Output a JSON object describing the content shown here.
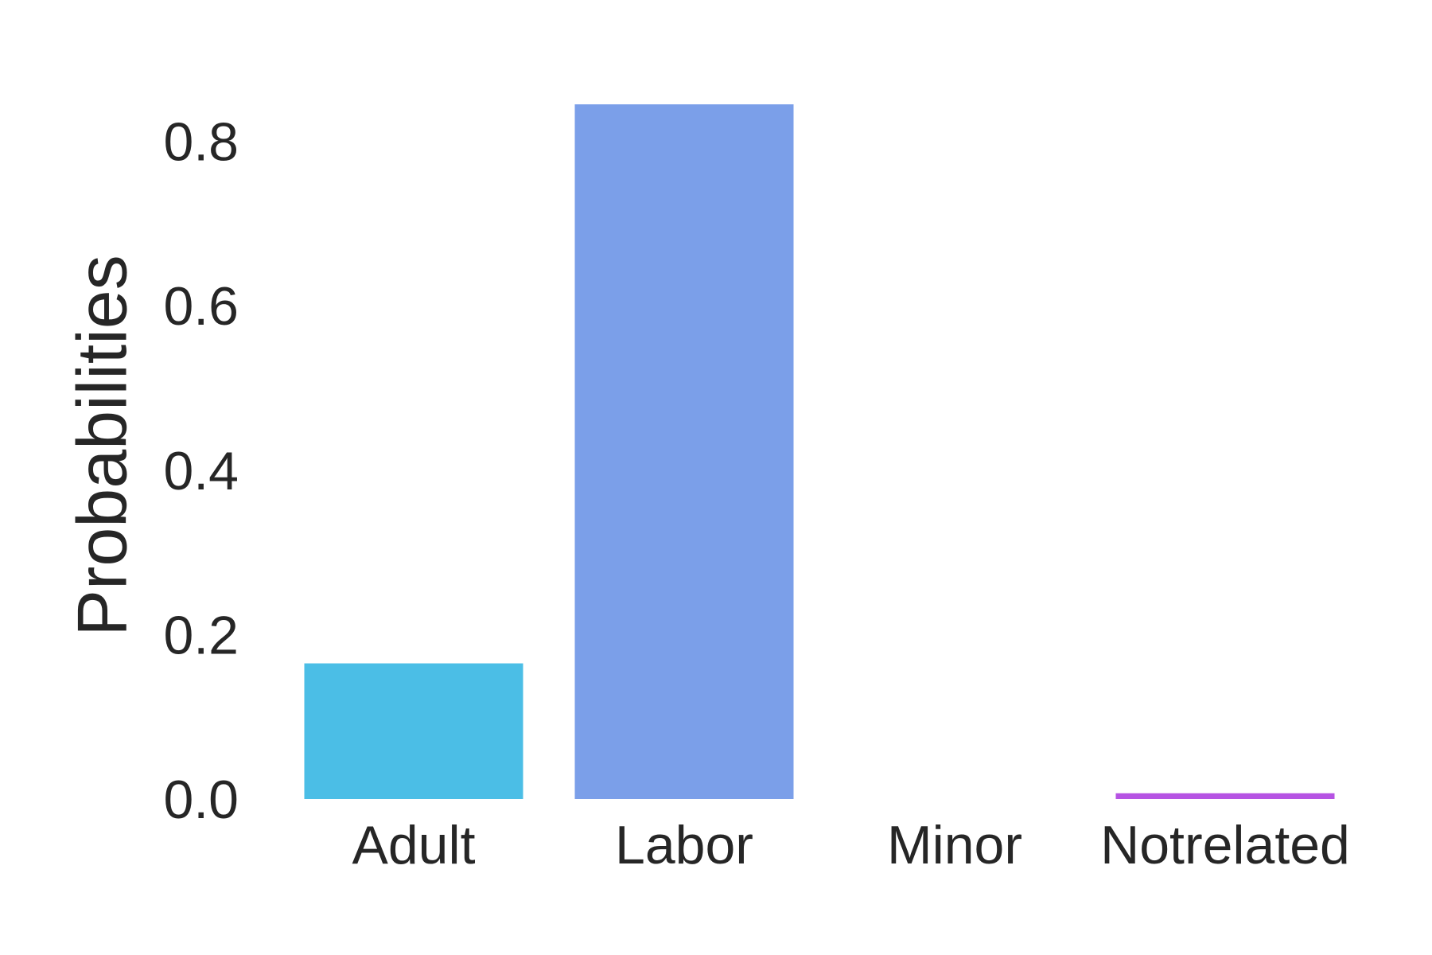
{
  "chart_data": {
    "type": "bar",
    "title": "",
    "xlabel": "",
    "ylabel": "Probabilities",
    "categories": [
      "Adult",
      "Labor",
      "Minor",
      "Notrelated"
    ],
    "values": [
      0.165,
      0.845,
      0.0,
      0.007
    ],
    "colors": [
      "#4bbee6",
      "#7b9fe9",
      "#9b8bea",
      "#b653e3"
    ],
    "ylim": [
      0,
      0.88
    ],
    "yticks": [
      0.0,
      0.2,
      0.4,
      0.6,
      0.8
    ],
    "ytick_labels": [
      "0.0",
      "0.2",
      "0.4",
      "0.6",
      "0.8"
    ],
    "grid": false,
    "legend": "none"
  }
}
